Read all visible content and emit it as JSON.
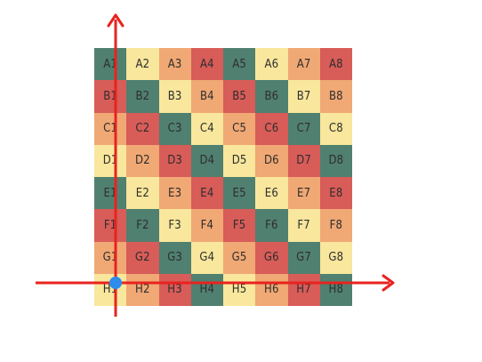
{
  "palette": {
    "T": "#508070",
    "R": "#D85C58",
    "O": "#F0A874",
    "Y": "#F8E79C",
    "axis": "#E8231F",
    "origin": "#2D8CEC"
  },
  "grid": {
    "rows": [
      {
        "cells": [
          {
            "label": "A1",
            "c": "T"
          },
          {
            "label": "A2",
            "c": "Y"
          },
          {
            "label": "A3",
            "c": "O"
          },
          {
            "label": "A4",
            "c": "R"
          },
          {
            "label": "A5",
            "c": "T"
          },
          {
            "label": "A6",
            "c": "Y"
          },
          {
            "label": "A7",
            "c": "O"
          },
          {
            "label": "A8",
            "c": "R"
          }
        ]
      },
      {
        "cells": [
          {
            "label": "B1",
            "c": "R"
          },
          {
            "label": "B2",
            "c": "T"
          },
          {
            "label": "B3",
            "c": "Y"
          },
          {
            "label": "B4",
            "c": "O"
          },
          {
            "label": "B5",
            "c": "R"
          },
          {
            "label": "B6",
            "c": "T"
          },
          {
            "label": "B7",
            "c": "Y"
          },
          {
            "label": "B8",
            "c": "O"
          }
        ]
      },
      {
        "cells": [
          {
            "label": "C1",
            "c": "O"
          },
          {
            "label": "C2",
            "c": "R"
          },
          {
            "label": "C3",
            "c": "T"
          },
          {
            "label": "C4",
            "c": "Y"
          },
          {
            "label": "C5",
            "c": "O"
          },
          {
            "label": "C6",
            "c": "R"
          },
          {
            "label": "C7",
            "c": "T"
          },
          {
            "label": "C8",
            "c": "Y"
          }
        ]
      },
      {
        "cells": [
          {
            "label": "D1",
            "c": "Y"
          },
          {
            "label": "D2",
            "c": "O"
          },
          {
            "label": "D3",
            "c": "R"
          },
          {
            "label": "D4",
            "c": "T"
          },
          {
            "label": "D5",
            "c": "Y"
          },
          {
            "label": "D6",
            "c": "O"
          },
          {
            "label": "D7",
            "c": "R"
          },
          {
            "label": "D8",
            "c": "T"
          }
        ]
      },
      {
        "cells": [
          {
            "label": "E1",
            "c": "T"
          },
          {
            "label": "E2",
            "c": "Y"
          },
          {
            "label": "E3",
            "c": "O"
          },
          {
            "label": "E4",
            "c": "R"
          },
          {
            "label": "E5",
            "c": "T"
          },
          {
            "label": "E6",
            "c": "Y"
          },
          {
            "label": "E7",
            "c": "O"
          },
          {
            "label": "E8",
            "c": "R"
          }
        ]
      },
      {
        "cells": [
          {
            "label": "F1",
            "c": "R"
          },
          {
            "label": "F2",
            "c": "T"
          },
          {
            "label": "F3",
            "c": "Y"
          },
          {
            "label": "F4",
            "c": "O"
          },
          {
            "label": "F5",
            "c": "R"
          },
          {
            "label": "F6",
            "c": "T"
          },
          {
            "label": "F7",
            "c": "Y"
          },
          {
            "label": "F8",
            "c": "O"
          }
        ]
      },
      {
        "cells": [
          {
            "label": "G1",
            "c": "O"
          },
          {
            "label": "G2",
            "c": "R"
          },
          {
            "label": "G3",
            "c": "T"
          },
          {
            "label": "G4",
            "c": "Y"
          },
          {
            "label": "G5",
            "c": "O"
          },
          {
            "label": "G6",
            "c": "R"
          },
          {
            "label": "G7",
            "c": "T"
          },
          {
            "label": "G8",
            "c": "Y"
          }
        ]
      },
      {
        "cells": [
          {
            "label": "H1",
            "c": "Y"
          },
          {
            "label": "H2",
            "c": "O"
          },
          {
            "label": "H3",
            "c": "R"
          },
          {
            "label": "H4",
            "c": "T"
          },
          {
            "label": "H5",
            "c": "Y"
          },
          {
            "label": "H6",
            "c": "O"
          },
          {
            "label": "H7",
            "c": "R"
          },
          {
            "label": "H8",
            "c": "T"
          }
        ]
      }
    ]
  }
}
